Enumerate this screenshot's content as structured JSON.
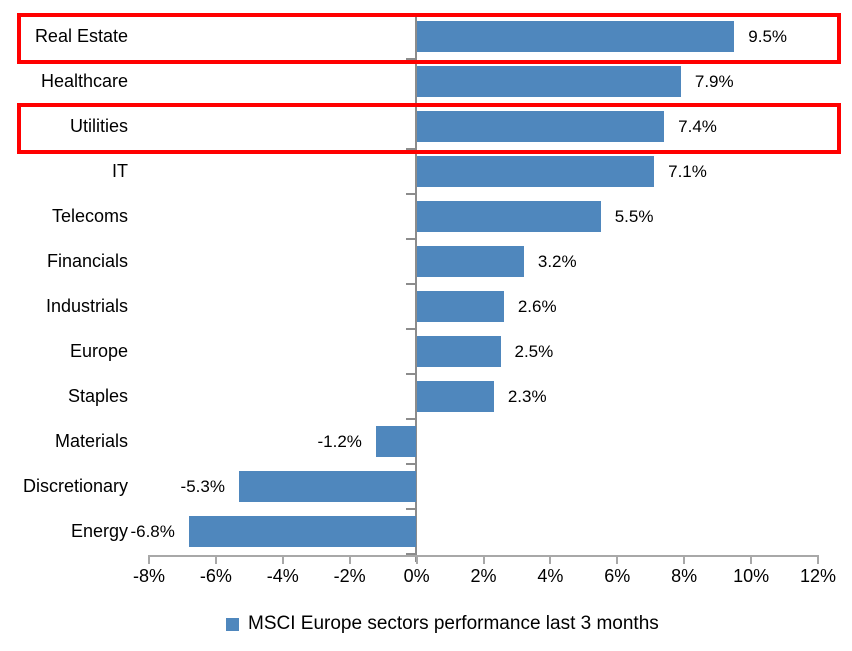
{
  "chart_data": {
    "type": "bar",
    "orientation": "horizontal",
    "title": "",
    "categories": [
      "Real Estate",
      "Healthcare",
      "Utilities",
      "IT",
      "Telecoms",
      "Financials",
      "Industrials",
      "Europe",
      "Staples",
      "Materials",
      "Discretionary",
      "Energy"
    ],
    "values": [
      9.5,
      7.9,
      7.4,
      7.1,
      5.5,
      3.2,
      2.6,
      2.5,
      2.3,
      -1.2,
      -5.3,
      -6.8
    ],
    "value_labels": [
      "9.5%",
      "7.9%",
      "7.4%",
      "7.1%",
      "5.5%",
      "3.2%",
      "2.6%",
      "2.5%",
      "2.3%",
      "-1.2%",
      "-5.3%",
      "-6.8%"
    ],
    "highlighted": [
      "Real Estate",
      "Utilities"
    ],
    "x_ticks": [
      "-8%",
      "-6%",
      "-4%",
      "-2%",
      "0%",
      "2%",
      "4%",
      "6%",
      "8%",
      "10%",
      "12%"
    ],
    "xlim": [
      -8,
      12
    ],
    "grid": "off",
    "legend_position": "bottom",
    "legend": "MSCI Europe sectors performance last 3 months",
    "bar_color": "#4F87BD",
    "highlight_color": "#FF0000",
    "axis_color": "#8C8C8C"
  }
}
